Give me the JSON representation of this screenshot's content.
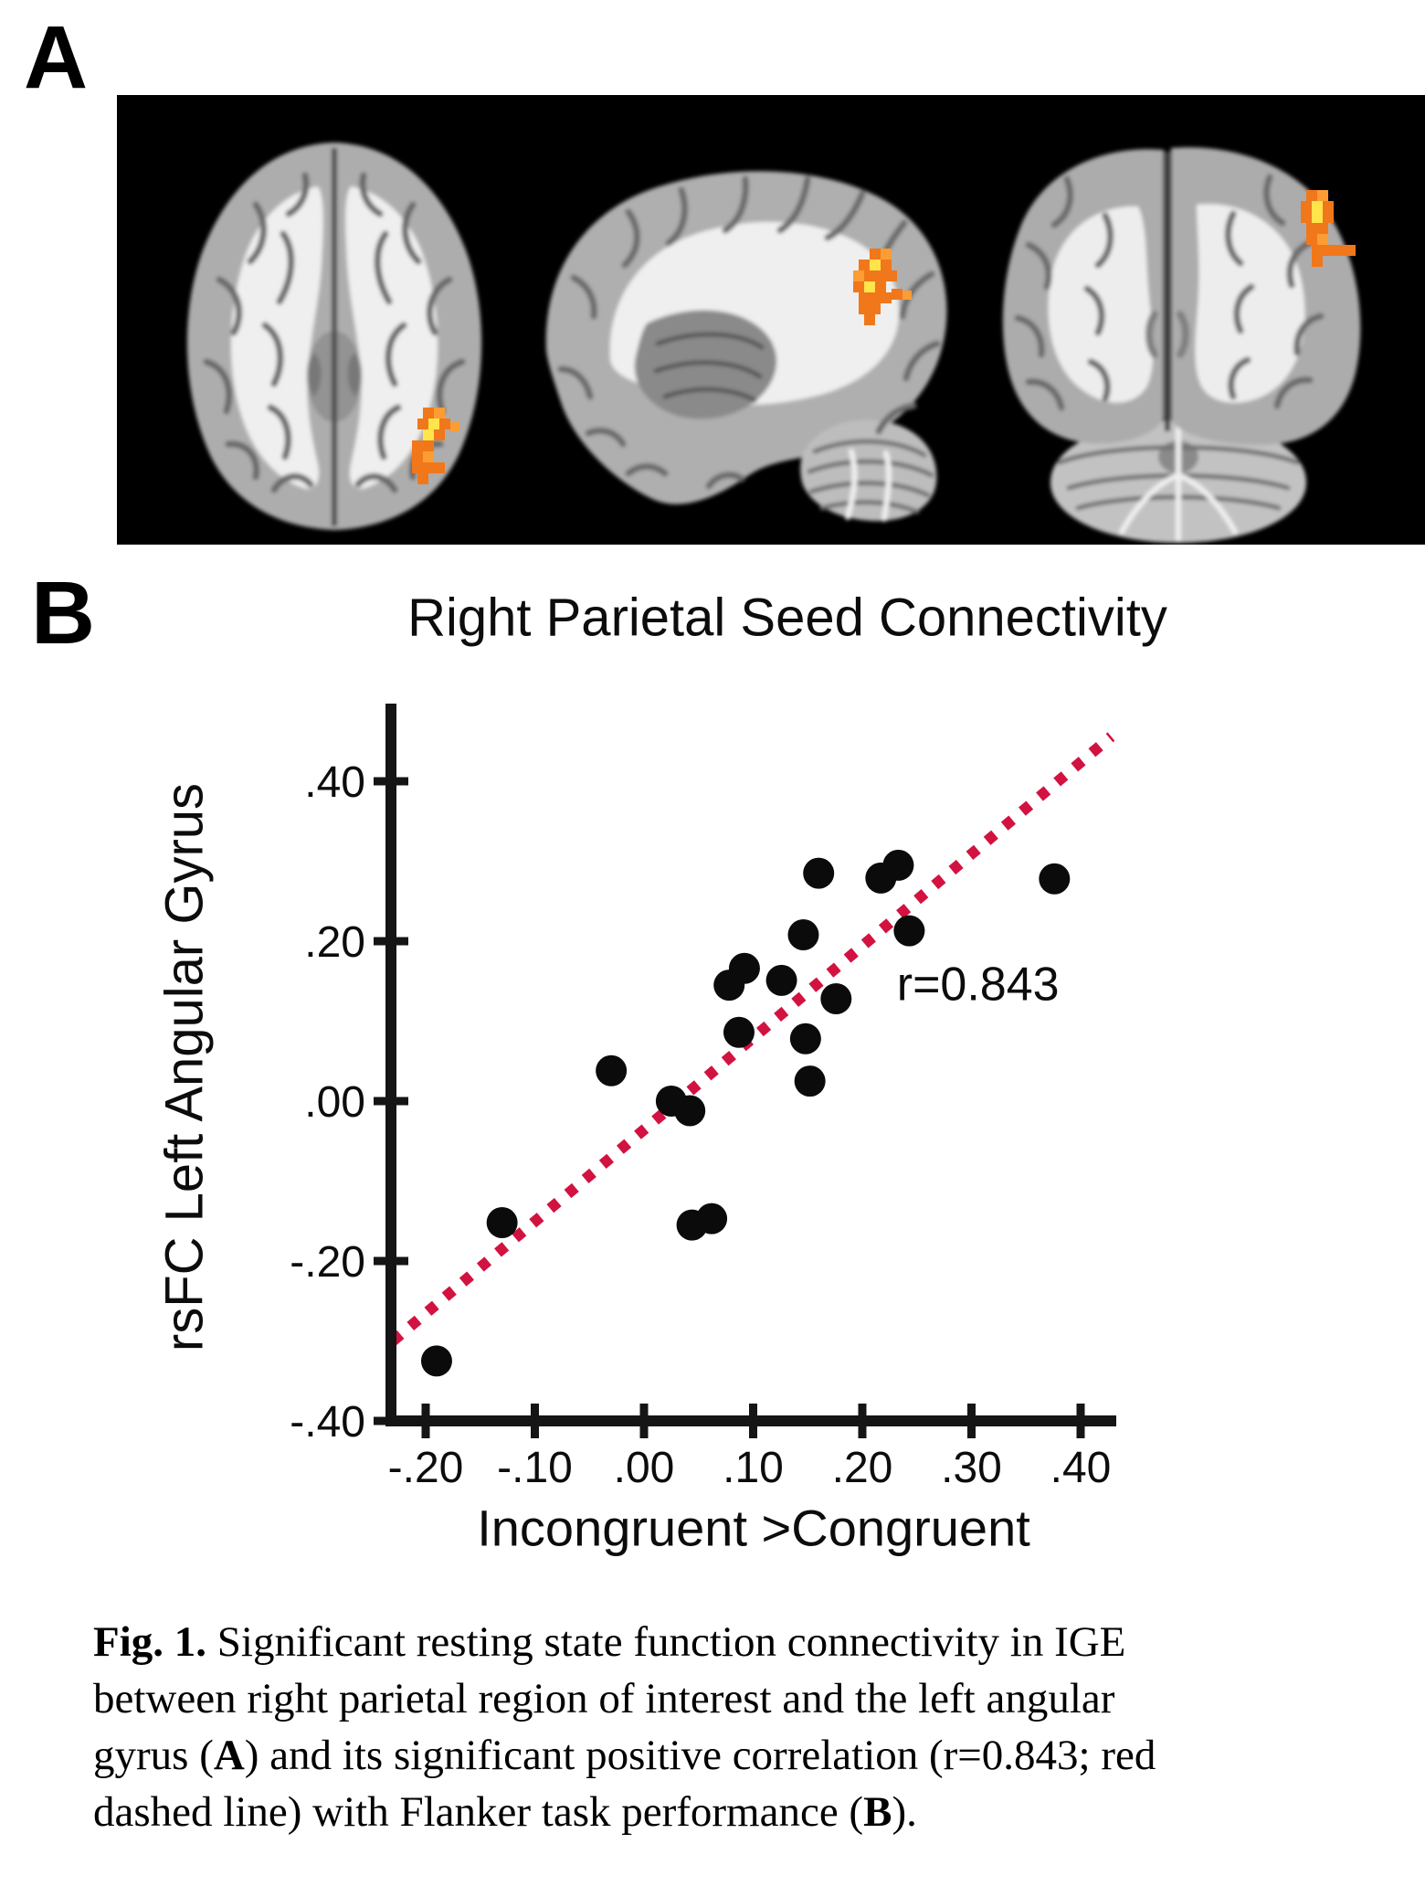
{
  "labels": {
    "panel_a": "A",
    "panel_b": "B"
  },
  "chart_data": {
    "type": "scatter",
    "title": "Right Parietal Seed Connectivity",
    "xlabel": "Incongruent >Congruent",
    "ylabel": "rsFC Left Angular Gyrus",
    "xlim": [
      -0.238,
      0.433
    ],
    "ylim": [
      -0.4,
      0.5
    ],
    "grid": false,
    "legend": null,
    "x_ticks": [
      {
        "v": -0.2,
        "label": "-.20"
      },
      {
        "v": -0.1,
        "label": "-.10"
      },
      {
        "v": 0.0,
        "label": ".00"
      },
      {
        "v": 0.1,
        "label": ".10"
      },
      {
        "v": 0.2,
        "label": ".20"
      },
      {
        "v": 0.3,
        "label": ".30"
      },
      {
        "v": 0.4,
        "label": ".40"
      }
    ],
    "y_ticks": [
      {
        "v": 0.4,
        "label": ".40"
      },
      {
        "v": 0.2,
        "label": ".20"
      },
      {
        "v": 0.0,
        "label": ".00"
      },
      {
        "v": -0.2,
        "label": "-.20"
      },
      {
        "v": -0.4,
        "label": "-.40"
      }
    ],
    "points": [
      [
        -0.19,
        -0.325
      ],
      [
        -0.13,
        -0.152
      ],
      [
        -0.03,
        0.038
      ],
      [
        0.025,
        0.0
      ],
      [
        0.042,
        -0.012
      ],
      [
        0.044,
        -0.155
      ],
      [
        0.062,
        -0.147
      ],
      [
        0.078,
        0.145
      ],
      [
        0.092,
        0.166
      ],
      [
        0.087,
        0.086
      ],
      [
        0.126,
        0.151
      ],
      [
        0.148,
        0.078
      ],
      [
        0.152,
        0.025
      ],
      [
        0.146,
        0.208
      ],
      [
        0.16,
        0.285
      ],
      [
        0.176,
        0.128
      ],
      [
        0.217,
        0.279
      ],
      [
        0.233,
        0.295
      ],
      [
        0.243,
        0.213
      ],
      [
        0.376,
        0.278
      ]
    ],
    "trend_line": {
      "x1": -0.23,
      "y1": -0.3,
      "x2": 0.428,
      "y2": 0.456,
      "style": "dotted"
    },
    "annotation": {
      "text": "r=0.843",
      "x": 0.306,
      "y": 0.148
    },
    "colors": {
      "point": "#0b0b0b",
      "trend": "#d21240",
      "axis": "#151515",
      "activation_orange": "#f1771b",
      "activation_yellow": "#ffe44c"
    }
  },
  "caption": {
    "lines": [
      [
        {
          "t": "Fig. 1.",
          "b": true
        },
        {
          "t": " Significant resting state function connectivity in IGE",
          "b": false
        }
      ],
      [
        {
          "t": "between right parietal region of interest and the left angular",
          "b": false
        }
      ],
      [
        {
          "t": "gyrus (",
          "b": false
        },
        {
          "t": "A",
          "b": true
        },
        {
          "t": ") and its significant positive correlation (r=0.843; red",
          "b": false
        }
      ],
      [
        {
          "t": "dashed line) with Flanker task performance (",
          "b": false
        },
        {
          "t": "B",
          "b": true
        },
        {
          "t": ").",
          "b": false
        }
      ]
    ]
  }
}
